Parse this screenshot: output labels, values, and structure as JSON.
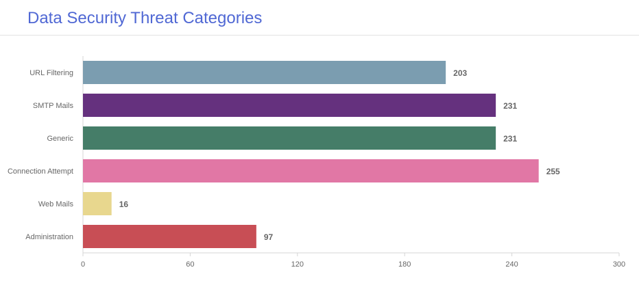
{
  "title": "Data Security Threat Categories",
  "chart_data": {
    "type": "bar",
    "orientation": "horizontal",
    "title": "Data Security Threat Categories",
    "xlabel": "",
    "ylabel": "",
    "xlim": [
      0,
      300
    ],
    "xticks": [
      0,
      60,
      120,
      180,
      240,
      300
    ],
    "grid": false,
    "legend": "none",
    "categories": [
      "URL Filtering",
      "SMTP Mails",
      "Generic",
      "Connection Attempt",
      "Web Mails",
      "Administration"
    ],
    "values": [
      203,
      231,
      231,
      255,
      16,
      97
    ],
    "colors": [
      "#7b9db0",
      "#65317e",
      "#457d68",
      "#e177a5",
      "#e8d78e",
      "#c84e55"
    ],
    "data_labels": [
      "203",
      "231",
      "231",
      "255",
      "16",
      "97"
    ]
  }
}
